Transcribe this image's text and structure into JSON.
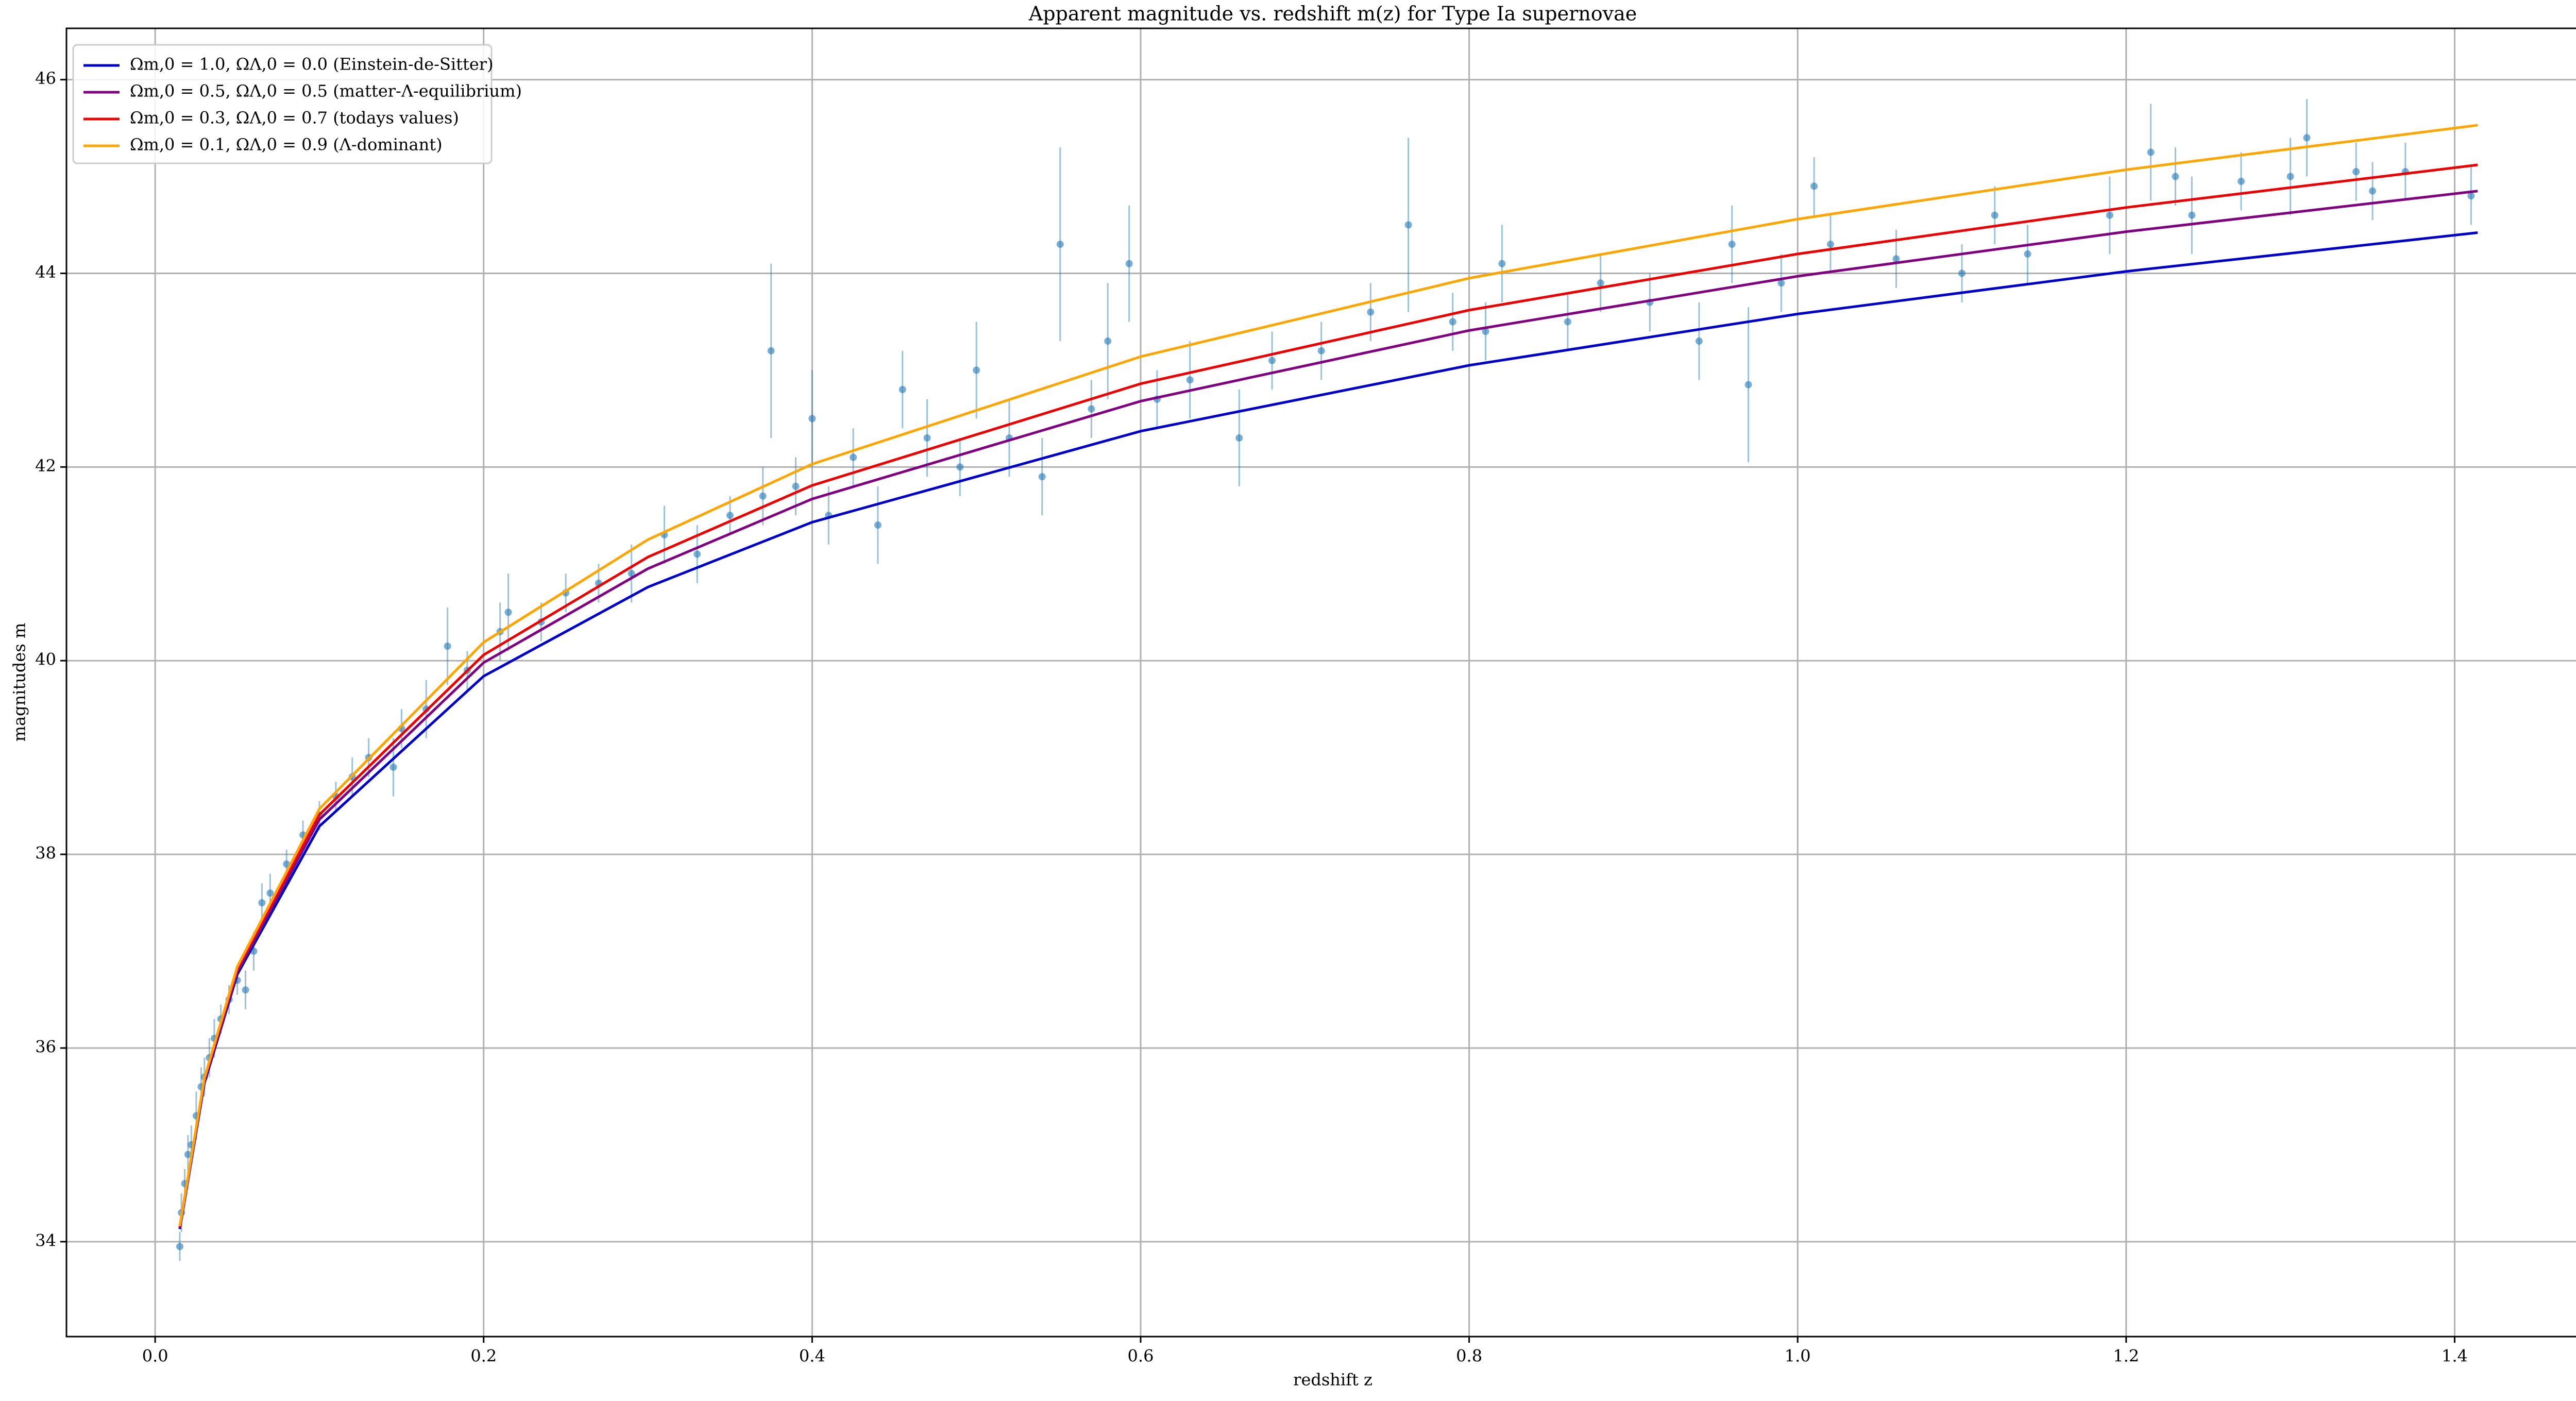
{
  "chart_data": {
    "type": "line",
    "title": "Apparent magnitude vs. redshift m(z) for Type Ia supernovae",
    "x_label": "redshift z",
    "y_label": "magnitudes m",
    "xlim": [
      -0.054,
      1.488
    ],
    "ylim": [
      33.02,
      46.53
    ],
    "xticks": [
      {
        "value": 0,
        "label": "0.0"
      },
      0.2,
      0.4,
      0.6,
      0.8,
      {
        "value": 1,
        "label": "1.0"
      },
      1.2,
      1.4
    ],
    "yticks": [
      34,
      36,
      38,
      40,
      42,
      44,
      46
    ],
    "grid": true,
    "legend": "upper left",
    "x": [
      0.015,
      0.03,
      0.05,
      0.1,
      0.2,
      0.3,
      0.4,
      0.6,
      0.8,
      1.0,
      1.2,
      1.414
    ],
    "series": [
      {
        "name": "Ωm,0 = 1.0, ΩΛ,0 = 0.0 (Einstein-de-Sitter)",
        "color": "#0000cc",
        "values": [
          34.13,
          35.64,
          36.76,
          38.29,
          39.84,
          40.76,
          41.43,
          42.37,
          43.05,
          43.58,
          44.02,
          44.42
        ]
      },
      {
        "name": "Ωm,0 = 0.5, ΩΛ,0 = 0.5 (matter-Λ-equilibrium)",
        "color": "#800080",
        "values": [
          34.14,
          35.66,
          36.79,
          38.36,
          39.98,
          40.95,
          41.67,
          42.68,
          43.41,
          43.97,
          44.43,
          44.85
        ]
      },
      {
        "name": "Ωm,0 = 0.3, ΩΛ,0 = 0.7 (todays values)",
        "color": "#ee0000",
        "values": [
          34.15,
          35.67,
          36.81,
          38.41,
          40.06,
          41.07,
          41.81,
          42.86,
          43.62,
          44.2,
          44.68,
          45.12
        ]
      },
      {
        "name": "Ωm,0 = 0.1, ΩΛ,0 = 0.9 (Λ-dominant)",
        "color": "#ffa500",
        "values": [
          34.16,
          35.69,
          36.84,
          38.47,
          40.19,
          41.25,
          42.03,
          43.14,
          43.95,
          44.56,
          45.07,
          45.53
        ]
      }
    ],
    "scatter": {
      "type": "errorbar",
      "color": "#1f77b4",
      "x": [
        0.015,
        0.016,
        0.018,
        0.02,
        0.022,
        0.025,
        0.028,
        0.03,
        0.033,
        0.036,
        0.04,
        0.045,
        0.05,
        0.055,
        0.06,
        0.065,
        0.07,
        0.08,
        0.09,
        0.1,
        0.11,
        0.12,
        0.13,
        0.145,
        0.15,
        0.165,
        0.178,
        0.19,
        0.21,
        0.215,
        0.235,
        0.25,
        0.27,
        0.29,
        0.31,
        0.33,
        0.35,
        0.37,
        0.375,
        0.39,
        0.4,
        0.41,
        0.425,
        0.44,
        0.455,
        0.47,
        0.49,
        0.5,
        0.52,
        0.54,
        0.551,
        0.57,
        0.58,
        0.593,
        0.61,
        0.63,
        0.66,
        0.68,
        0.71,
        0.74,
        0.763,
        0.79,
        0.81,
        0.82,
        0.86,
        0.88,
        0.91,
        0.94,
        0.96,
        0.97,
        0.99,
        1.01,
        1.02,
        1.06,
        1.1,
        1.12,
        1.14,
        1.19,
        1.215,
        1.23,
        1.24,
        1.27,
        1.3,
        1.31,
        1.34,
        1.35,
        1.37,
        1.41
      ],
      "values": [
        33.95,
        34.3,
        34.6,
        34.9,
        35.0,
        35.3,
        35.6,
        35.7,
        35.9,
        36.1,
        36.3,
        36.5,
        36.7,
        36.6,
        37.0,
        37.5,
        37.6,
        37.9,
        38.2,
        38.4,
        38.6,
        38.8,
        39.0,
        38.9,
        39.3,
        39.5,
        40.15,
        39.9,
        40.3,
        40.5,
        40.4,
        40.7,
        40.8,
        40.9,
        41.3,
        41.1,
        41.5,
        41.7,
        43.2,
        41.8,
        42.5,
        41.5,
        42.1,
        41.4,
        42.8,
        42.3,
        42.0,
        43.0,
        42.3,
        41.9,
        44.3,
        42.6,
        43.3,
        44.1,
        42.7,
        42.9,
        42.3,
        43.1,
        43.2,
        43.6,
        44.5,
        43.5,
        43.4,
        44.1,
        43.5,
        43.9,
        43.7,
        43.3,
        44.3,
        42.85,
        43.9,
        44.9,
        44.3,
        44.15,
        44.0,
        44.6,
        44.2,
        44.6,
        45.25,
        45.0,
        44.6,
        44.95,
        45.0,
        45.4,
        45.05,
        44.85,
        45.05,
        44.8
      ],
      "errors": [
        0.15,
        0.2,
        0.15,
        0.2,
        0.2,
        0.25,
        0.2,
        0.2,
        0.2,
        0.2,
        0.15,
        0.15,
        0.15,
        0.2,
        0.2,
        0.2,
        0.2,
        0.15,
        0.15,
        0.15,
        0.15,
        0.2,
        0.2,
        0.3,
        0.2,
        0.3,
        0.4,
        0.2,
        0.3,
        0.4,
        0.2,
        0.2,
        0.2,
        0.3,
        0.3,
        0.3,
        0.2,
        0.3,
        0.9,
        0.3,
        0.5,
        0.3,
        0.3,
        0.4,
        0.4,
        0.4,
        0.3,
        0.5,
        0.4,
        0.4,
        1.0,
        0.3,
        0.6,
        0.6,
        0.3,
        0.4,
        0.5,
        0.3,
        0.3,
        0.3,
        0.9,
        0.3,
        0.3,
        0.4,
        0.3,
        0.3,
        0.3,
        0.4,
        0.4,
        0.8,
        0.3,
        0.3,
        0.3,
        0.3,
        0.3,
        0.3,
        0.3,
        0.4,
        0.5,
        0.3,
        0.4,
        0.3,
        0.4,
        0.4,
        0.3,
        0.3,
        0.3,
        0.3
      ]
    }
  }
}
